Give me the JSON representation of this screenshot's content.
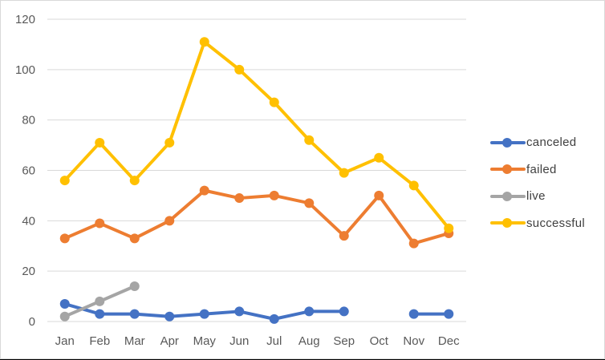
{
  "chart_data": {
    "type": "line",
    "title": "",
    "xlabel": "",
    "ylabel": "",
    "categories": [
      "Jan",
      "Feb",
      "Mar",
      "Apr",
      "May",
      "Jun",
      "Jul",
      "Aug",
      "Sep",
      "Oct",
      "Nov",
      "Dec"
    ],
    "yticks": [
      0,
      20,
      40,
      60,
      80,
      100,
      120
    ],
    "ylim": [
      0,
      120
    ],
    "grid": true,
    "legend_position": "right",
    "series": [
      {
        "name": "canceled",
        "color": "#4472C4",
        "values": [
          7,
          3,
          3,
          2,
          3,
          4,
          1,
          4,
          4,
          null,
          3,
          3
        ]
      },
      {
        "name": "failed",
        "color": "#ED7D31",
        "values": [
          33,
          39,
          33,
          40,
          52,
          49,
          50,
          47,
          34,
          50,
          31,
          35
        ]
      },
      {
        "name": "live",
        "color": "#A5A5A5",
        "values": [
          2,
          8,
          14,
          null,
          null,
          null,
          null,
          null,
          null,
          null,
          null,
          null
        ]
      },
      {
        "name": "successful",
        "color": "#FFC000",
        "values": [
          56,
          71,
          56,
          71,
          111,
          100,
          87,
          72,
          59,
          65,
          54,
          37
        ]
      }
    ]
  },
  "legend": {
    "items": [
      {
        "label": "canceled",
        "color": "#4472C4"
      },
      {
        "label": "failed",
        "color": "#ED7D31"
      },
      {
        "label": "live",
        "color": "#A5A5A5"
      },
      {
        "label": "successful",
        "color": "#FFC000"
      }
    ]
  }
}
